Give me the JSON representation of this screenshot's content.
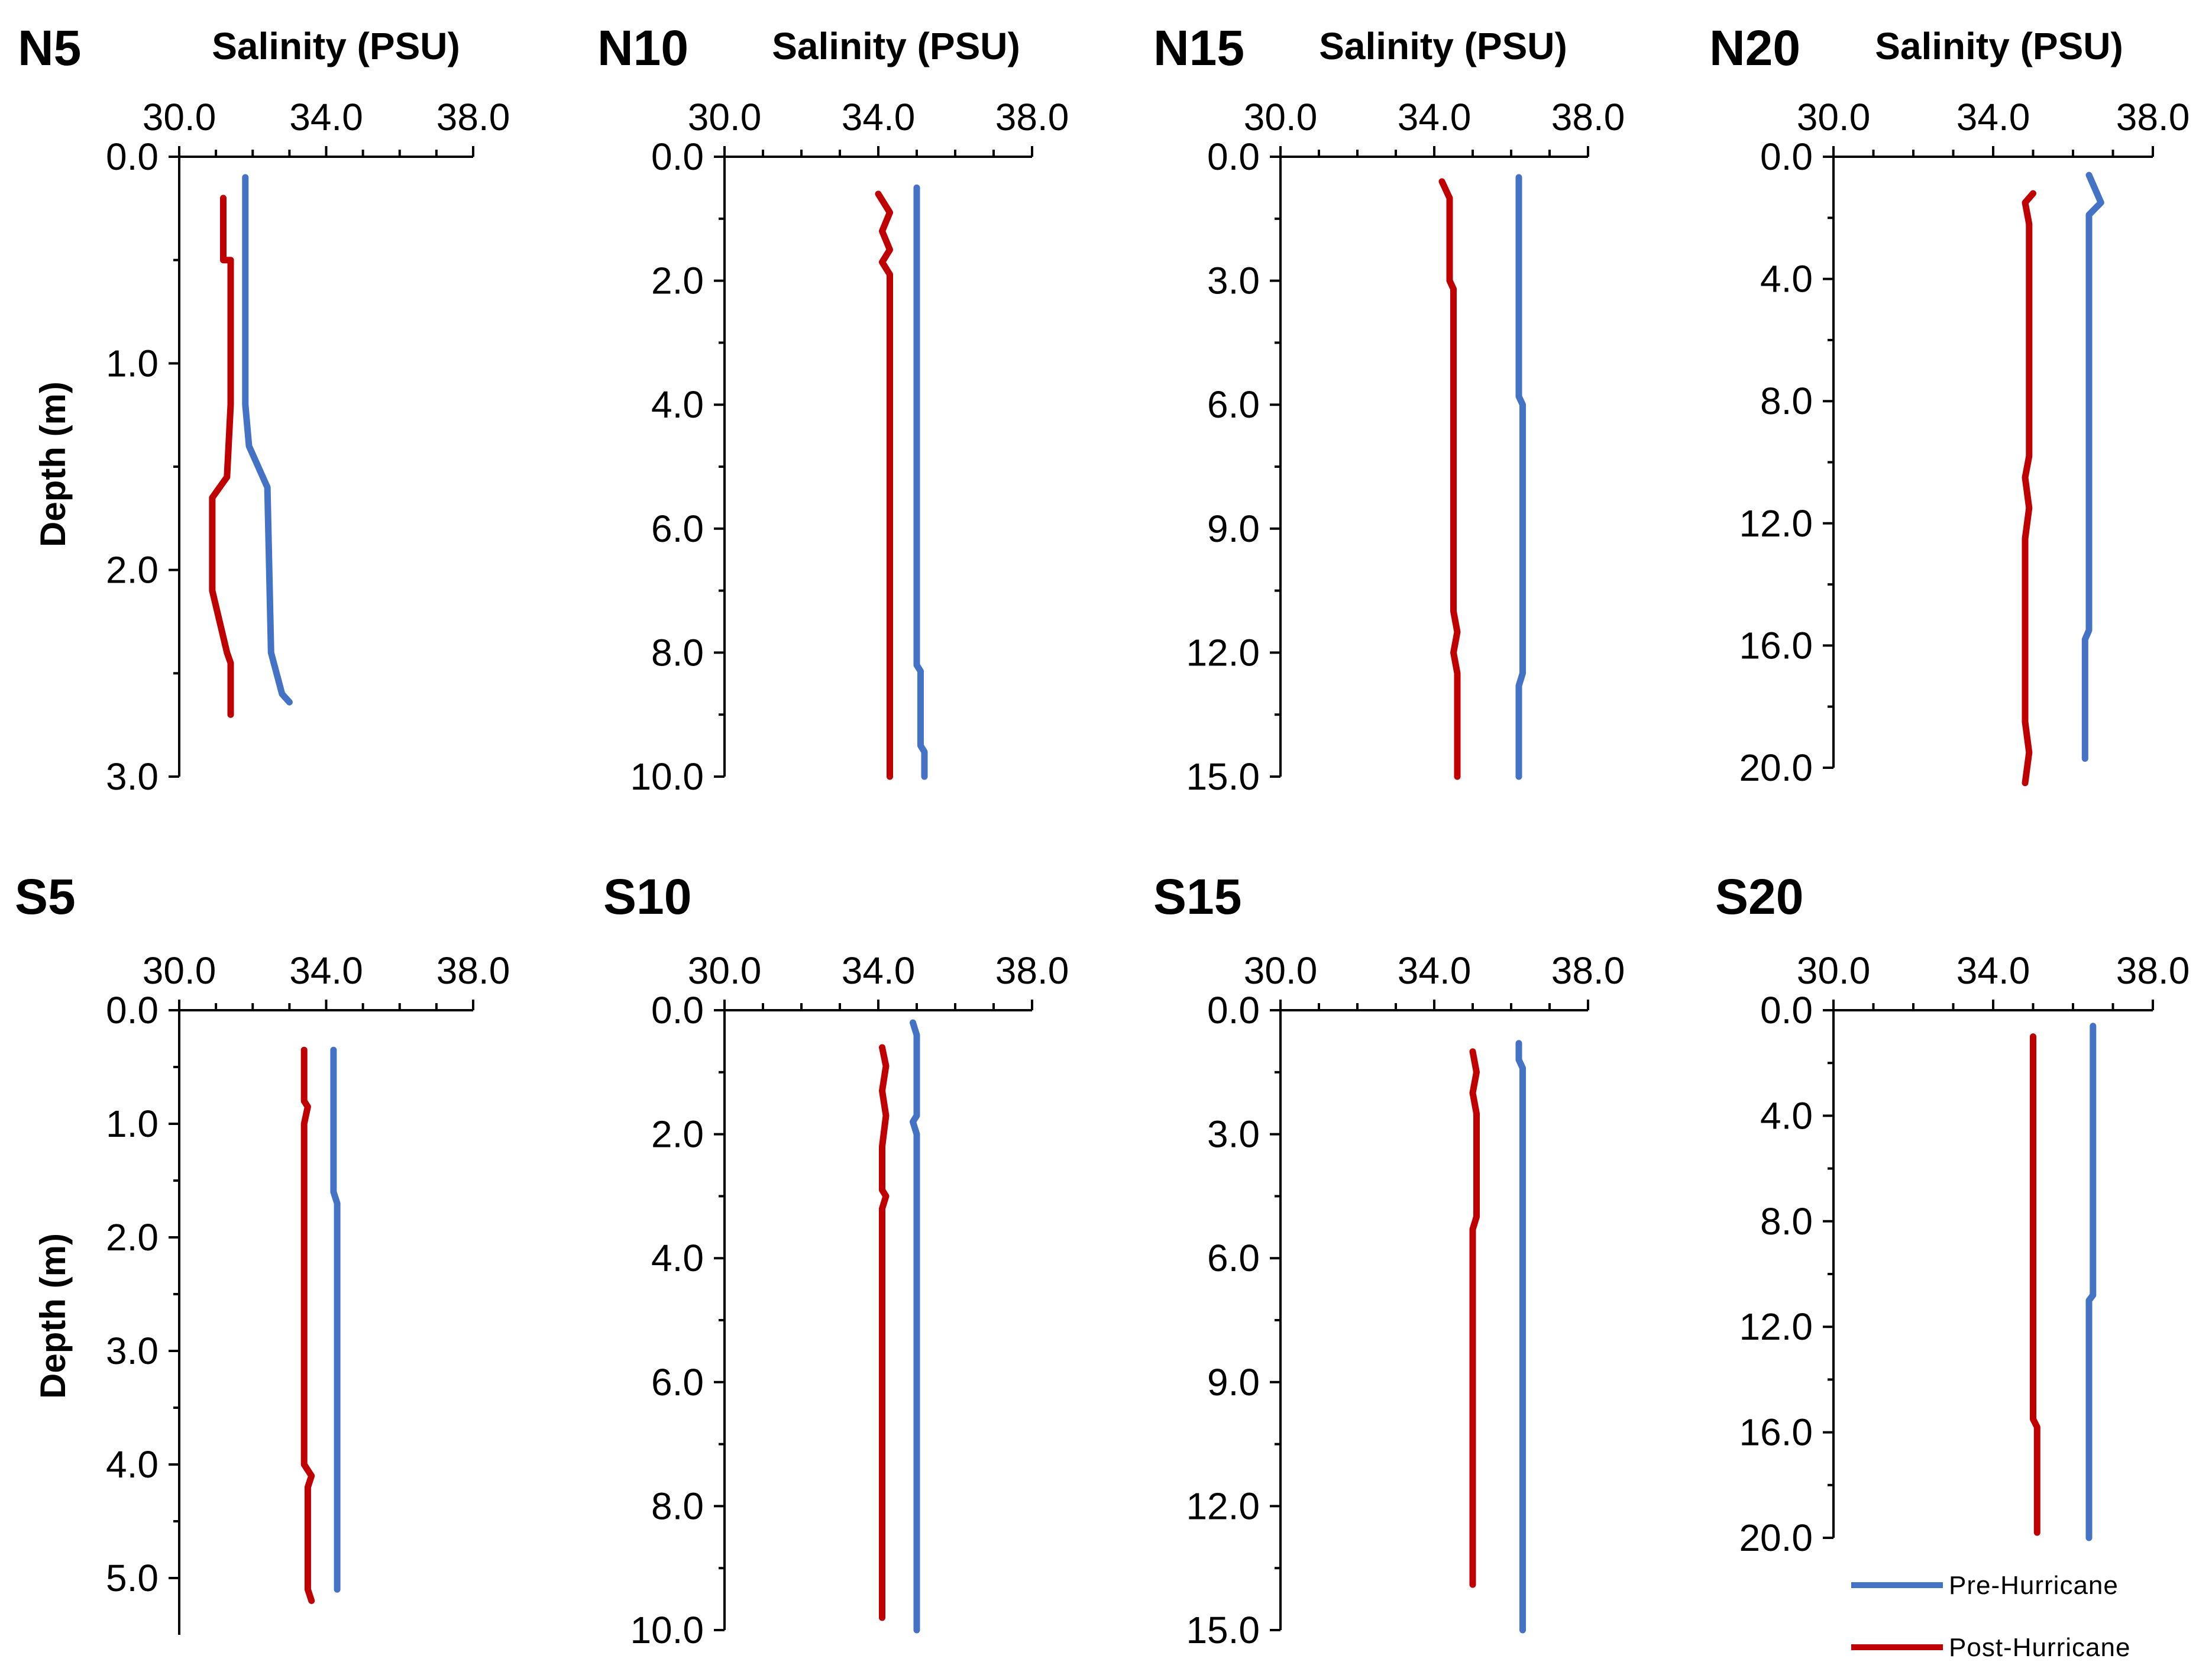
{
  "chart_data": [
    {
      "type": "line",
      "panel": "N5",
      "title": "N5",
      "xlabel": "Salinity (PSU)",
      "ylabel": "Depth (m)",
      "xlim": [
        30,
        38
      ],
      "ylim": [
        0,
        3
      ],
      "xticks": [
        "30.0",
        "34.0",
        "38.0"
      ],
      "yticks": [
        "0.0",
        "1.0",
        "2.0",
        "3.0"
      ],
      "series": [
        {
          "name": "Pre-Hurricane",
          "color": "#4472C4",
          "points": [
            [
              31.8,
              0.1
            ],
            [
              31.8,
              1.2
            ],
            [
              31.9,
              1.4
            ],
            [
              32.4,
              1.6
            ],
            [
              32.5,
              2.4
            ],
            [
              32.8,
              2.6
            ],
            [
              33.0,
              2.64
            ]
          ]
        },
        {
          "name": "Post-Hurricane",
          "color": "#C00000",
          "points": [
            [
              31.2,
              0.2
            ],
            [
              31.2,
              0.5
            ],
            [
              31.4,
              0.5
            ],
            [
              31.4,
              1.2
            ],
            [
              31.3,
              1.55
            ],
            [
              30.9,
              1.65
            ],
            [
              30.9,
              2.1
            ],
            [
              31.3,
              2.4
            ],
            [
              31.4,
              2.45
            ],
            [
              31.4,
              2.7
            ]
          ]
        }
      ]
    },
    {
      "type": "line",
      "panel": "N10",
      "title": "N10",
      "xlabel": "Salinity (PSU)",
      "ylabel": "",
      "xlim": [
        30,
        38
      ],
      "ylim": [
        0,
        10
      ],
      "xticks": [
        "30.0",
        "34.0",
        "38.0"
      ],
      "yticks": [
        "0.0",
        "2.0",
        "4.0",
        "6.0",
        "8.0",
        "10.0"
      ],
      "series": [
        {
          "name": "Pre-Hurricane",
          "color": "#4472C4",
          "points": [
            [
              35.0,
              0.5
            ],
            [
              35.0,
              8.2
            ],
            [
              35.1,
              8.3
            ],
            [
              35.1,
              9.5
            ],
            [
              35.2,
              9.6
            ],
            [
              35.2,
              10.0
            ]
          ]
        },
        {
          "name": "Post-Hurricane",
          "color": "#C00000",
          "points": [
            [
              34.0,
              0.6
            ],
            [
              34.3,
              0.9
            ],
            [
              34.1,
              1.2
            ],
            [
              34.3,
              1.5
            ],
            [
              34.1,
              1.7
            ],
            [
              34.3,
              1.9
            ],
            [
              34.3,
              10.0
            ]
          ]
        }
      ]
    },
    {
      "type": "line",
      "panel": "N15",
      "title": "N15",
      "xlabel": "Salinity (PSU)",
      "ylabel": "",
      "xlim": [
        30,
        38
      ],
      "ylim": [
        0,
        15
      ],
      "xticks": [
        "30.0",
        "34.0",
        "38.0"
      ],
      "yticks": [
        "0.0",
        "3.0",
        "6.0",
        "9.0",
        "12.0",
        "15.0"
      ],
      "series": [
        {
          "name": "Pre-Hurricane",
          "color": "#4472C4",
          "points": [
            [
              36.2,
              0.5
            ],
            [
              36.2,
              5.8
            ],
            [
              36.3,
              6.0
            ],
            [
              36.3,
              12.5
            ],
            [
              36.2,
              12.8
            ],
            [
              36.2,
              15.0
            ]
          ]
        },
        {
          "name": "Post-Hurricane",
          "color": "#C00000",
          "points": [
            [
              34.2,
              0.6
            ],
            [
              34.4,
              1.0
            ],
            [
              34.4,
              3.0
            ],
            [
              34.5,
              3.2
            ],
            [
              34.5,
              11.0
            ],
            [
              34.6,
              11.5
            ],
            [
              34.5,
              12.0
            ],
            [
              34.6,
              12.5
            ],
            [
              34.6,
              15.0
            ]
          ]
        }
      ]
    },
    {
      "type": "line",
      "panel": "N20",
      "title": "N20",
      "xlabel": "Salinity (PSU)",
      "ylabel": "",
      "xlim": [
        30,
        38
      ],
      "ylim": [
        0,
        20
      ],
      "xticks": [
        "30.0",
        "34.0",
        "38.0"
      ],
      "yticks": [
        "0.0",
        "4.0",
        "8.0",
        "12.0",
        "16.0",
        "20.0"
      ],
      "series": [
        {
          "name": "Pre-Hurricane",
          "color": "#4472C4",
          "points": [
            [
              36.4,
              0.6
            ],
            [
              36.7,
              1.5
            ],
            [
              36.4,
              1.9
            ],
            [
              36.4,
              15.5
            ],
            [
              36.3,
              15.8
            ],
            [
              36.3,
              19.7
            ]
          ]
        },
        {
          "name": "Post-Hurricane",
          "color": "#C00000",
          "points": [
            [
              35.0,
              1.2
            ],
            [
              34.8,
              1.5
            ],
            [
              34.9,
              2.2
            ],
            [
              34.9,
              9.8
            ],
            [
              34.8,
              10.5
            ],
            [
              34.9,
              11.5
            ],
            [
              34.8,
              12.5
            ],
            [
              34.8,
              18.5
            ],
            [
              34.9,
              19.5
            ],
            [
              34.8,
              20.5
            ]
          ]
        }
      ]
    },
    {
      "type": "line",
      "panel": "S5",
      "title": "S5",
      "xlabel": "",
      "ylabel": "Depth (m)",
      "xlim": [
        30,
        38
      ],
      "ylim": [
        0,
        5.5
      ],
      "xticks": [
        "30.0",
        "34.0",
        "38.0"
      ],
      "yticks": [
        "0.0",
        "1.0",
        "2.0",
        "3.0",
        "4.0",
        "5.0"
      ],
      "series": [
        {
          "name": "Pre-Hurricane",
          "color": "#4472C4",
          "points": [
            [
              34.2,
              0.35
            ],
            [
              34.2,
              1.6
            ],
            [
              34.3,
              1.7
            ],
            [
              34.3,
              5.1
            ]
          ]
        },
        {
          "name": "Post-Hurricane",
          "color": "#C00000",
          "points": [
            [
              33.4,
              0.35
            ],
            [
              33.4,
              0.8
            ],
            [
              33.5,
              0.85
            ],
            [
              33.4,
              1.0
            ],
            [
              33.4,
              4.0
            ],
            [
              33.6,
              4.1
            ],
            [
              33.5,
              4.2
            ],
            [
              33.5,
              5.1
            ],
            [
              33.6,
              5.2
            ]
          ]
        }
      ]
    },
    {
      "type": "line",
      "panel": "S10",
      "title": "S10",
      "xlabel": "",
      "ylabel": "",
      "xlim": [
        30,
        38
      ],
      "ylim": [
        0,
        10
      ],
      "xticks": [
        "30.0",
        "34.0",
        "38.0"
      ],
      "yticks": [
        "0.0",
        "2.0",
        "4.0",
        "6.0",
        "8.0",
        "10.0"
      ],
      "series": [
        {
          "name": "Pre-Hurricane",
          "color": "#4472C4",
          "points": [
            [
              34.9,
              0.2
            ],
            [
              35.0,
              0.4
            ],
            [
              35.0,
              1.7
            ],
            [
              34.9,
              1.8
            ],
            [
              35.0,
              2.0
            ],
            [
              35.0,
              10.0
            ]
          ]
        },
        {
          "name": "Post-Hurricane",
          "color": "#C00000",
          "points": [
            [
              34.1,
              0.6
            ],
            [
              34.2,
              0.9
            ],
            [
              34.1,
              1.3
            ],
            [
              34.2,
              1.7
            ],
            [
              34.1,
              2.2
            ],
            [
              34.1,
              2.9
            ],
            [
              34.2,
              3.0
            ],
            [
              34.1,
              3.2
            ],
            [
              34.1,
              9.8
            ]
          ]
        }
      ]
    },
    {
      "type": "line",
      "panel": "S15",
      "title": "S15",
      "xlabel": "",
      "ylabel": "",
      "xlim": [
        30,
        38
      ],
      "ylim": [
        0,
        15
      ],
      "xticks": [
        "30.0",
        "34.0",
        "38.0"
      ],
      "yticks": [
        "0.0",
        "3.0",
        "6.0",
        "9.0",
        "12.0",
        "15.0"
      ],
      "series": [
        {
          "name": "Pre-Hurricane",
          "color": "#4472C4",
          "points": [
            [
              36.2,
              0.8
            ],
            [
              36.2,
              1.2
            ],
            [
              36.3,
              1.4
            ],
            [
              36.3,
              15.0
            ]
          ]
        },
        {
          "name": "Post-Hurricane",
          "color": "#C00000",
          "points": [
            [
              35.0,
              1.0
            ],
            [
              35.1,
              1.5
            ],
            [
              35.0,
              2.0
            ],
            [
              35.1,
              2.5
            ],
            [
              35.1,
              5.0
            ],
            [
              35.0,
              5.3
            ],
            [
              35.0,
              13.9
            ]
          ]
        }
      ]
    },
    {
      "type": "line",
      "panel": "S20",
      "title": "S20",
      "xlabel": "",
      "ylabel": "",
      "xlim": [
        30,
        38
      ],
      "ylim": [
        0,
        20
      ],
      "xticks": [
        "30.0",
        "34.0",
        "38.0"
      ],
      "yticks": [
        "0.0",
        "4.0",
        "8.0",
        "12.0",
        "16.0",
        "20.0"
      ],
      "series": [
        {
          "name": "Pre-Hurricane",
          "color": "#4472C4",
          "points": [
            [
              36.5,
              0.6
            ],
            [
              36.5,
              10.8
            ],
            [
              36.4,
              11.0
            ],
            [
              36.4,
              20.0
            ]
          ]
        },
        {
          "name": "Post-Hurricane",
          "color": "#C00000",
          "points": [
            [
              35.0,
              1.0
            ],
            [
              35.0,
              15.5
            ],
            [
              35.1,
              15.8
            ],
            [
              35.1,
              19.8
            ]
          ]
        }
      ]
    }
  ],
  "legend": {
    "items": [
      {
        "label": "Pre-Hurricane",
        "color": "#4472C4"
      },
      {
        "label": "Post-Hurricane",
        "color": "#C00000"
      }
    ]
  }
}
